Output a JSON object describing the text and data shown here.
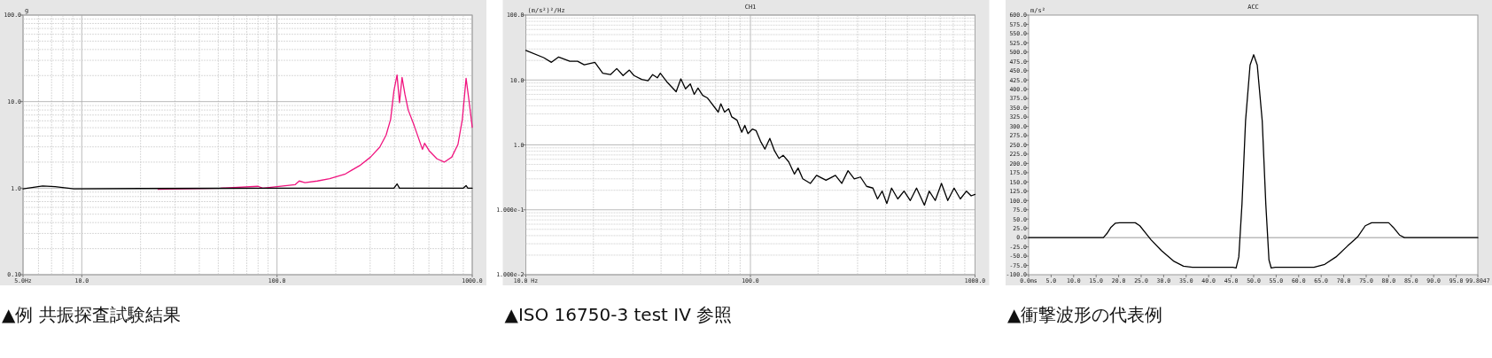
{
  "chart_data": [
    {
      "type": "line",
      "ylabel": "g",
      "log": "xy",
      "grid": true,
      "xlim": [
        5,
        1000
      ],
      "ylim": [
        0.1,
        100
      ],
      "xticks": [
        {
          "value": 5,
          "label": "5.0Hz"
        },
        {
          "value": 10,
          "label": "10.0"
        },
        {
          "value": 100,
          "label": "100.0"
        },
        {
          "value": 1000,
          "label": "1000.0"
        }
      ],
      "yticks": [
        {
          "value": 0.1,
          "label": "0.10"
        },
        {
          "value": 1,
          "label": "1.0"
        },
        {
          "value": 10,
          "label": "10.0"
        },
        {
          "value": 100,
          "label": "100.0"
        }
      ],
      "series": [
        {
          "color": "#f0147f",
          "x": [
            24.6,
            51.3,
            80,
            84.5,
            124,
            130,
            139,
            161,
            186,
            224,
            241,
            265,
            301,
            336,
            362,
            382,
            397,
            412,
            424,
            437,
            452,
            470,
            504,
            556,
            570,
            602,
            660,
            719,
            785,
            845,
            890,
            930,
            962,
            1000
          ],
          "values": [
            0.97,
            1.0,
            1.05,
            1.0,
            1.1,
            1.21,
            1.16,
            1.21,
            1.29,
            1.46,
            1.61,
            1.82,
            2.28,
            2.98,
            4.1,
            6.25,
            13.3,
            20.3,
            9.7,
            19.0,
            12.2,
            8.0,
            5.3,
            2.8,
            3.3,
            2.7,
            2.18,
            2.0,
            2.28,
            3.2,
            6.25,
            18.6,
            10.4,
            5.06
          ]
        },
        {
          "color": "#000000",
          "x": [
            5,
            6.3,
            7.3,
            9.1,
            20,
            100,
            300,
            397,
            412,
            424,
            900,
            930,
            950,
            1000
          ],
          "values": [
            0.98,
            1.06,
            1.04,
            0.98,
            0.99,
            1.0,
            1.0,
            1.0,
            1.12,
            1.0,
            1.0,
            1.07,
            1.0,
            1.0
          ]
        }
      ],
      "annotations": [
        "▲例 共振探査試験結果"
      ]
    },
    {
      "type": "line",
      "title": "CH1",
      "ylabel": "(m/s²)²/Hz",
      "log": "xy",
      "grid": true,
      "xlim": [
        10,
        1000
      ],
      "ylim": [
        0.01,
        100
      ],
      "xticks": [
        {
          "value": 10,
          "label": "10.0 Hz"
        },
        {
          "value": 100,
          "label": "100.0"
        },
        {
          "value": 1000,
          "label": "1000.0"
        }
      ],
      "yticks": [
        {
          "value": 0.01,
          "label": "1.000e-2"
        },
        {
          "value": 0.1,
          "label": "1.000e-1"
        },
        {
          "value": 1,
          "label": "1.0"
        },
        {
          "value": 10,
          "label": "10.0"
        },
        {
          "value": 100,
          "label": "100.0"
        }
      ],
      "series": [
        {
          "color": "#000000",
          "x": [
            10.0,
            12.0,
            13.0,
            14.0,
            15.7,
            17.0,
            18.2,
            20.3,
            22.0,
            23.8,
            25.4,
            27.1,
            28.9,
            30.3,
            32.8,
            35.0,
            36.7,
            38.5,
            39.7,
            42.4,
            46.7,
            49.0,
            51.4,
            54.0,
            56.2,
            58.4,
            61.3,
            64.3,
            71.9,
            73.8,
            76.7,
            80.0,
            82.6,
            87.2,
            91.5,
            94.4,
            97.5,
            102,
            106,
            111,
            116,
            122,
            128,
            134,
            140,
            148,
            157,
            163,
            171,
            185,
            197,
            217,
            239,
            255,
            272,
            290,
            309,
            329,
            351,
            368,
            386,
            405,
            425,
            453,
            483,
            515,
            549,
            595,
            625,
            665,
            709,
            756,
            807,
            860,
            916,
            961,
            1000
          ],
          "values": [
            28.5,
            22.1,
            18.7,
            22.6,
            19.4,
            19.4,
            17.1,
            18.7,
            12.7,
            12.1,
            15.0,
            11.7,
            14.2,
            11.7,
            10.2,
            9.7,
            12.1,
            10.8,
            12.7,
            9.4,
            6.6,
            10.4,
            7.3,
            8.7,
            6.0,
            7.5,
            5.8,
            5.3,
            3.2,
            4.3,
            3.2,
            3.6,
            2.7,
            2.4,
            1.57,
            2.0,
            1.49,
            1.75,
            1.66,
            1.13,
            0.86,
            1.26,
            0.81,
            0.62,
            0.69,
            0.55,
            0.355,
            0.44,
            0.3,
            0.255,
            0.34,
            0.285,
            0.34,
            0.255,
            0.4,
            0.3,
            0.32,
            0.23,
            0.216,
            0.147,
            0.194,
            0.125,
            0.216,
            0.147,
            0.194,
            0.139,
            0.216,
            0.118,
            0.194,
            0.139,
            0.255,
            0.139,
            0.216,
            0.147,
            0.194,
            0.164,
            0.173
          ]
        }
      ],
      "annotations": [
        "▲ISO 16750-3 test IV 参照"
      ]
    },
    {
      "type": "line",
      "title": "ACC",
      "ylabel": "m/s²",
      "xlim": [
        0,
        99.8047
      ],
      "ylim": [
        -100,
        600
      ],
      "xticks": [
        {
          "value": 0,
          "label": "0.0ms"
        },
        {
          "value": 5,
          "label": "5.0"
        },
        {
          "value": 10,
          "label": "10.0"
        },
        {
          "value": 15,
          "label": "15.0"
        },
        {
          "value": 20,
          "label": "20.0"
        },
        {
          "value": 25,
          "label": "25.0"
        },
        {
          "value": 30,
          "label": "30.0"
        },
        {
          "value": 35,
          "label": "35.0"
        },
        {
          "value": 40,
          "label": "40.0"
        },
        {
          "value": 45,
          "label": "45.0"
        },
        {
          "value": 50,
          "label": "50.0"
        },
        {
          "value": 55,
          "label": "55.0"
        },
        {
          "value": 60,
          "label": "60.0"
        },
        {
          "value": 65,
          "label": "65.0"
        },
        {
          "value": 70,
          "label": "70.0"
        },
        {
          "value": 75,
          "label": "75.0"
        },
        {
          "value": 80,
          "label": "80.0"
        },
        {
          "value": 85,
          "label": "85.0"
        },
        {
          "value": 90,
          "label": "90.0"
        },
        {
          "value": 95,
          "label": "95.0"
        },
        {
          "value": 99.8047,
          "label": "99.8047"
        }
      ],
      "yticks": [
        {
          "value": -100,
          "label": "-100.0"
        },
        {
          "value": -75,
          "label": "-75.0"
        },
        {
          "value": -50,
          "label": "-50.0"
        },
        {
          "value": -25,
          "label": "-25.0"
        },
        {
          "value": 0,
          "label": "0.0"
        },
        {
          "value": 25,
          "label": "25.0"
        },
        {
          "value": 50,
          "label": "50.0"
        },
        {
          "value": 75,
          "label": "75.0"
        },
        {
          "value": 100,
          "label": "100.0"
        },
        {
          "value": 125,
          "label": "125.0"
        },
        {
          "value": 150,
          "label": "150.0"
        },
        {
          "value": 175,
          "label": "175.0"
        },
        {
          "value": 200,
          "label": "200.0"
        },
        {
          "value": 225,
          "label": "225.0"
        },
        {
          "value": 250,
          "label": "250.0"
        },
        {
          "value": 275,
          "label": "275.0"
        },
        {
          "value": 300,
          "label": "300.0"
        },
        {
          "value": 325,
          "label": "325.0"
        },
        {
          "value": 350,
          "label": "350.0"
        },
        {
          "value": 375,
          "label": "375.0"
        },
        {
          "value": 400,
          "label": "400.0"
        },
        {
          "value": 425,
          "label": "425.0"
        },
        {
          "value": 450,
          "label": "450.0"
        },
        {
          "value": 475,
          "label": "475.0"
        },
        {
          "value": 500,
          "label": "500.0"
        },
        {
          "value": 525,
          "label": "525.0"
        },
        {
          "value": 550,
          "label": "550.0"
        },
        {
          "value": 575,
          "label": "575.0"
        },
        {
          "value": 600,
          "label": "600.0"
        }
      ],
      "ref_lines": [
        {
          "axis": "y",
          "value": 0,
          "color": "#999999"
        }
      ],
      "series": [
        {
          "color": "#000000",
          "x": [
            0,
            16.6,
            17.4,
            18.3,
            19.3,
            20.2,
            23.7,
            24.7,
            26.1,
            27.2,
            29.5,
            32.3,
            34.4,
            36.4,
            45.4,
            46.1,
            46.7,
            47.4,
            48.2,
            49.2,
            50,
            50.8,
            51.9,
            52.7,
            53.4,
            53.9,
            54.8,
            63.4,
            65.8,
            68.3,
            70.9,
            73.1,
            74.8,
            76.2,
            80,
            81.0,
            82.4,
            83.5,
            99.8
          ],
          "values": [
            0,
            0,
            11,
            28,
            39,
            40,
            40,
            32,
            11,
            -6,
            -35,
            -64,
            -77,
            -80,
            -80,
            -82,
            -52,
            90,
            315,
            465,
            493,
            465,
            315,
            90,
            -60,
            -82,
            -80,
            -80,
            -72,
            -52,
            -22,
            2,
            32,
            40,
            40,
            28,
            7,
            0,
            0
          ]
        }
      ],
      "annotations": [
        "▲衝撃波形の代表例"
      ]
    }
  ]
}
